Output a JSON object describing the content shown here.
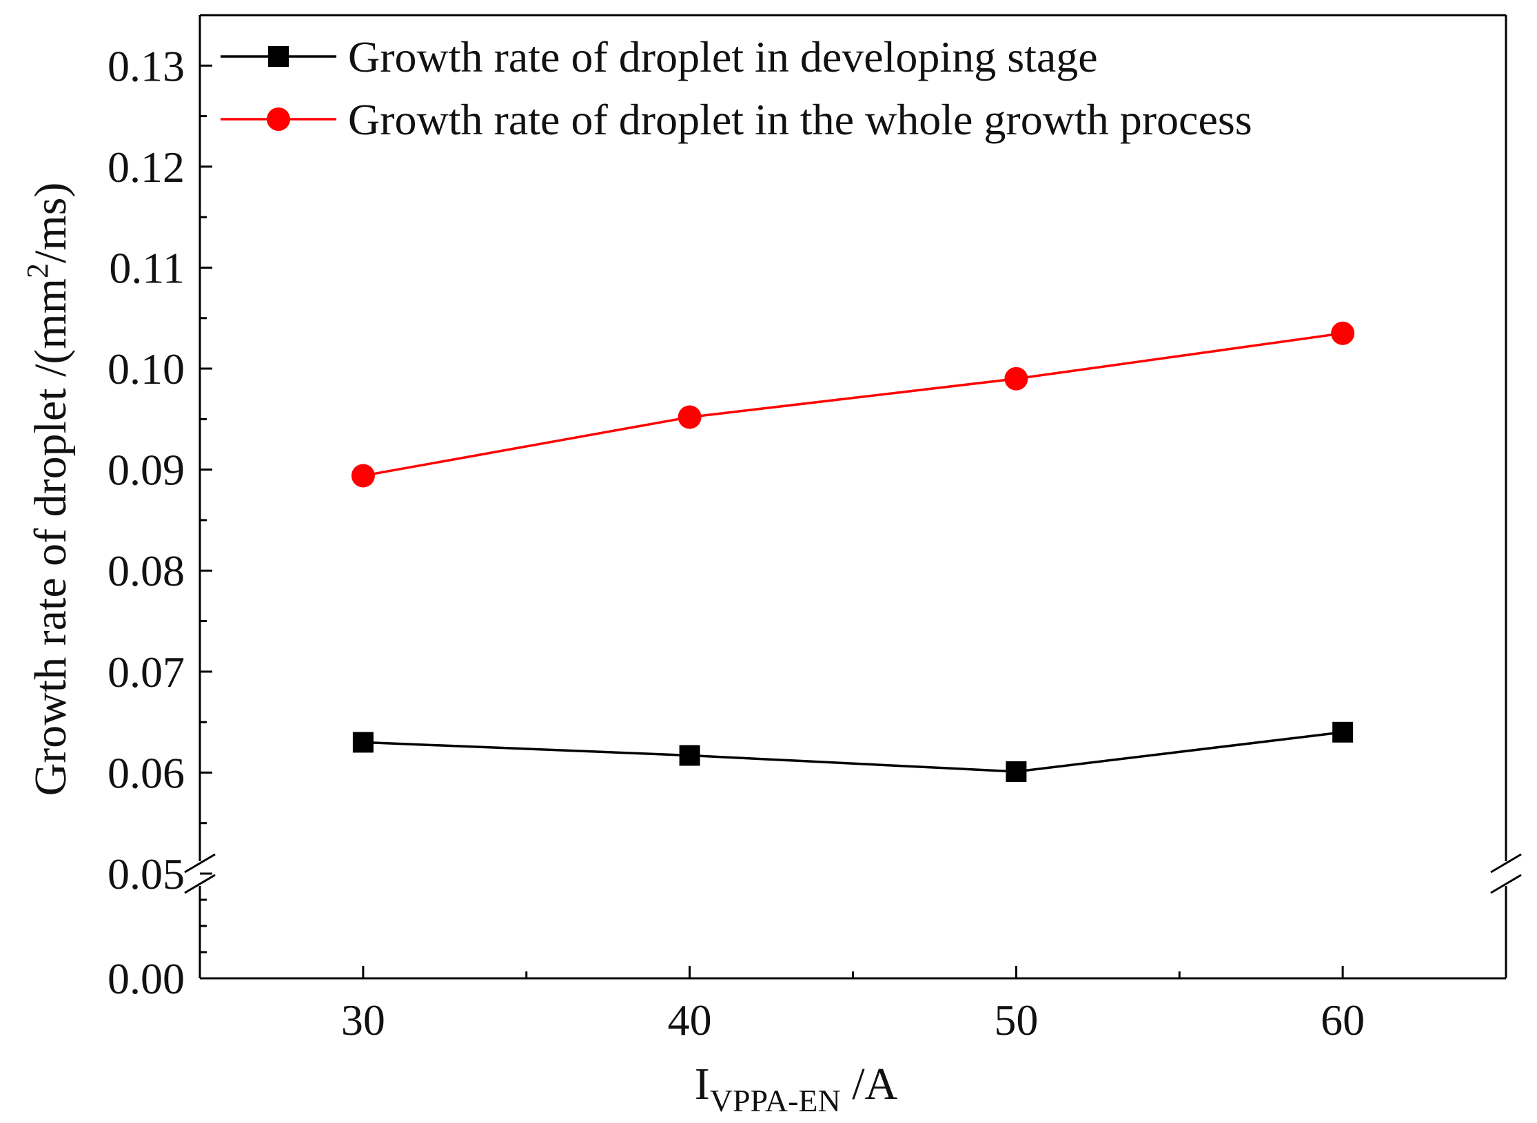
{
  "chart_data": {
    "type": "line",
    "title": "",
    "x": [
      30,
      40,
      50,
      60
    ],
    "xlim": [
      25,
      65
    ],
    "x_ticks": [
      30,
      40,
      50,
      60
    ],
    "x_tick_labels": [
      "30",
      "40",
      "50",
      "60"
    ],
    "xlabel": {
      "main": "I",
      "subscript": "VPPA-EN",
      "suffix": " /A"
    },
    "ylabel": {
      "main": "Growth rate of droplet  /(mm",
      "superscript": "2",
      "suffix": "/ms)"
    },
    "y_axis_break": {
      "lower_range": [
        0.0,
        0.05
      ],
      "upper_range": [
        0.05,
        0.135
      ]
    },
    "y_ticks": [
      0.0,
      0.05,
      0.06,
      0.07,
      0.08,
      0.09,
      0.1,
      0.11,
      0.12,
      0.13
    ],
    "y_tick_labels": [
      "0.00",
      "0.05",
      "0.06",
      "0.07",
      "0.08",
      "0.09",
      "0.10",
      "0.11",
      "0.12",
      "0.13"
    ],
    "series": [
      {
        "name": "Growth rate of droplet in developing stage",
        "color": "#000000",
        "marker": "square",
        "values": [
          0.063,
          0.0617,
          0.0601,
          0.064
        ]
      },
      {
        "name": "Growth rate of droplet in the whole growth process",
        "color": "#ff0000",
        "marker": "circle",
        "values": [
          0.0894,
          0.0952,
          0.099,
          0.1035
        ]
      }
    ],
    "legend_position": "top-left"
  }
}
